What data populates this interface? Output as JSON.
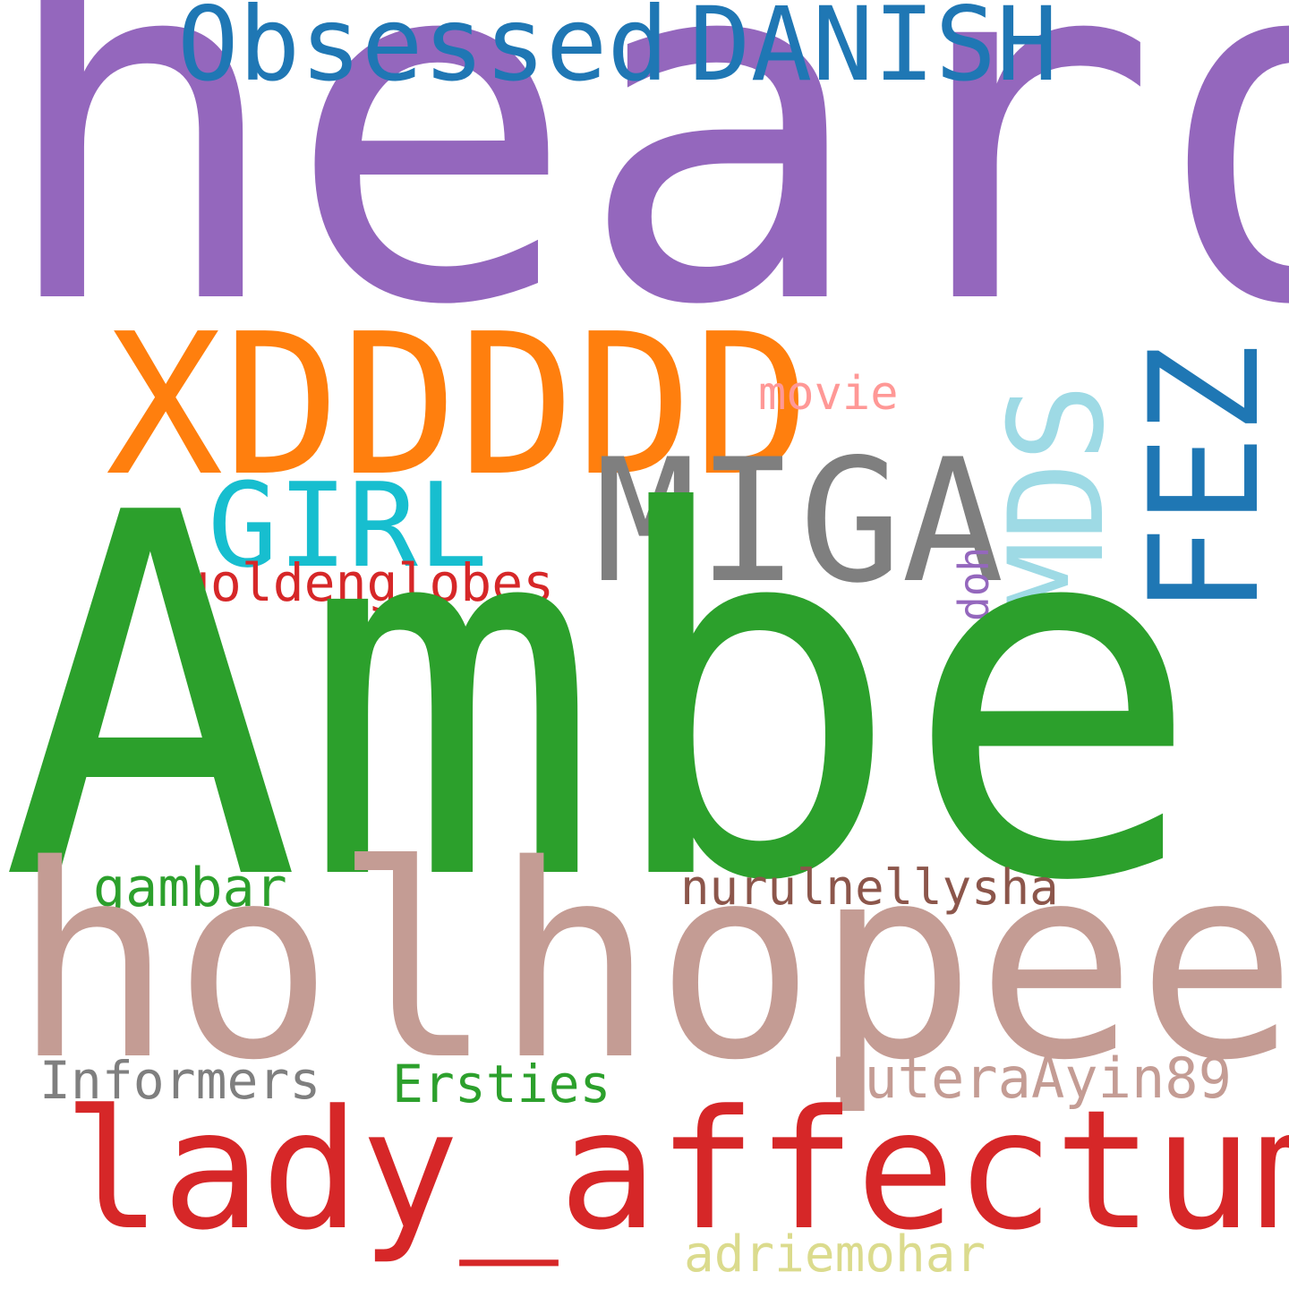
{
  "words": {
    "heard": {
      "text": "heard",
      "color": "#9467bd"
    },
    "obsessed": {
      "text": "Obsessed",
      "color": "#1f77b4"
    },
    "danish": {
      "text": "DANISH",
      "color": "#1f77b4"
    },
    "xddddd": {
      "text": "XDDDDD",
      "color": "#ff7f0e"
    },
    "movie": {
      "text": "movie",
      "color": "#ff9896"
    },
    "girl": {
      "text": "GIRL",
      "color": "#17becf"
    },
    "miga": {
      "text": "MIGA",
      "color": "#7f7f7f"
    },
    "mds": {
      "text": "MDS",
      "color": "#9edae5"
    },
    "fez": {
      "text": "FEZ",
      "color": "#1f77b4"
    },
    "doh": {
      "text": "doh",
      "color": "#9467bd"
    },
    "goldenglobes": {
      "text": "goldenglobes",
      "color": "#d62728"
    },
    "amber": {
      "text": "Amber",
      "color": "#2ca02c"
    },
    "gambar": {
      "text": "gambar",
      "color": "#2ca02c"
    },
    "nurulnellysha": {
      "text": "nurulnellysha",
      "color": "#8c564b"
    },
    "holhopeee": {
      "text": "holhopeee",
      "color": "#c49c94"
    },
    "informers": {
      "text": "Informers",
      "color": "#7f7f7f"
    },
    "ersties": {
      "text": "Ersties",
      "color": "#2ca02c"
    },
    "puteraayin89": {
      "text": "PuteraAyin89",
      "color": "#c49c94"
    },
    "lady_affectum": {
      "text": "lady_affectum",
      "color": "#d62728"
    },
    "adriemohar": {
      "text": "adriemohar",
      "color": "#dbdb8d"
    }
  }
}
